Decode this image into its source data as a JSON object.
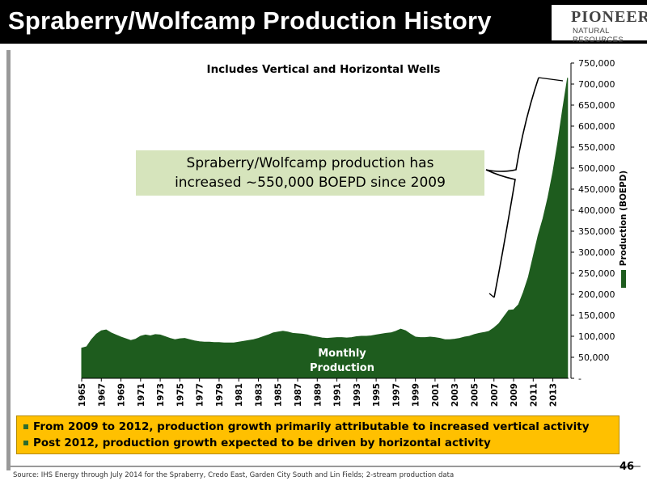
{
  "header": {
    "title": "Spraberry/Wolfcamp Production History"
  },
  "logo": {
    "name": "PIONEER",
    "sub": "NATURAL RESOURCES"
  },
  "subtitle": "Includes Vertical and Horizontal Wells",
  "callout": {
    "line1": "Spraberry/Wolfcamp production has",
    "line2": "increased ~550,000 BOEPD since 2009"
  },
  "bullets": [
    "From 2009 to 2012, production growth primarily attributable to increased vertical activity",
    "Post 2012, production growth expected to be driven by horizontal activity"
  ],
  "source": "Source: IHS Energy through July 2014 for the Spraberry, Credo East, Garden City South and Lin Fields; 2-stream production data",
  "page_number": "46",
  "colors": {
    "series": "#1e5c1e",
    "callout_bg": "#d6e4bc",
    "bullet_bg": "#ffc000"
  },
  "chart_data": {
    "type": "area",
    "title": "Includes Vertical and Horizontal Wells",
    "ylabel": "Production (BOEPD)",
    "ylim": [
      0,
      750000
    ],
    "yticks": [
      0,
      50000,
      100000,
      150000,
      200000,
      250000,
      300000,
      350000,
      400000,
      450000,
      500000,
      550000,
      600000,
      650000,
      700000,
      750000
    ],
    "ytick_labels": [
      "-",
      "50,000",
      "100,000",
      "150,000",
      "200,000",
      "250,000",
      "300,000",
      "350,000",
      "400,000",
      "450,000",
      "500,000",
      "550,000",
      "600,000",
      "650,000",
      "700,000",
      "750,000"
    ],
    "xlim": [
      1965,
      2014.6
    ],
    "xtick_labels": [
      "1965",
      "1967",
      "1969",
      "1971",
      "1973",
      "1975",
      "1977",
      "1979",
      "1981",
      "1983",
      "1985",
      "1987",
      "1989",
      "1991",
      "1993",
      "1995",
      "1997",
      "1999",
      "2001",
      "2003",
      "2005",
      "2007",
      "2009",
      "2011",
      "2013"
    ],
    "series": [
      {
        "name": "Monthly Production",
        "x": [
          1965,
          1965.5,
          1966,
          1966.5,
          1967,
          1967.5,
          1968,
          1968.5,
          1969,
          1969.5,
          1970,
          1970.5,
          1971,
          1971.5,
          1972,
          1972.5,
          1973,
          1973.5,
          1974,
          1974.5,
          1975,
          1975.5,
          1976,
          1976.5,
          1977,
          1977.5,
          1978,
          1978.5,
          1979,
          1979.5,
          1980,
          1980.5,
          1981,
          1981.5,
          1982,
          1982.5,
          1983,
          1983.5,
          1984,
          1984.5,
          1985,
          1985.5,
          1986,
          1986.5,
          1987,
          1987.5,
          1988,
          1988.5,
          1989,
          1989.5,
          1990,
          1990.5,
          1991,
          1991.5,
          1992,
          1992.5,
          1993,
          1993.5,
          1994,
          1994.5,
          1995,
          1995.5,
          1996,
          1996.5,
          1997,
          1997.5,
          1998,
          1998.5,
          1999,
          1999.5,
          2000,
          2000.5,
          2001,
          2001.5,
          2002,
          2002.5,
          2003,
          2003.5,
          2004,
          2004.5,
          2005,
          2005.5,
          2006,
          2006.5,
          2007,
          2007.5,
          2008,
          2008.5,
          2009,
          2009.5,
          2010,
          2010.5,
          2011,
          2011.5,
          2012,
          2012.5,
          2013,
          2013.5,
          2014,
          2014.5
        ],
        "values": [
          72000,
          75000,
          92000,
          105000,
          113000,
          115000,
          108000,
          103000,
          98000,
          94000,
          90000,
          93000,
          100000,
          103000,
          101000,
          104000,
          103000,
          99000,
          95000,
          92000,
          94000,
          95000,
          92000,
          89000,
          87000,
          86000,
          86000,
          85000,
          85000,
          84000,
          84000,
          84000,
          86000,
          88000,
          90000,
          92000,
          95000,
          99000,
          103000,
          108000,
          110000,
          112000,
          110000,
          107000,
          106000,
          105000,
          103000,
          100000,
          98000,
          96000,
          95000,
          96000,
          97000,
          97000,
          96000,
          97000,
          99000,
          100000,
          100000,
          101000,
          103000,
          105000,
          107000,
          108000,
          112000,
          117000,
          113000,
          105000,
          98000,
          97000,
          97000,
          98000,
          97000,
          95000,
          92000,
          92000,
          93000,
          95000,
          98000,
          100000,
          104000,
          107000,
          109000,
          112000,
          120000,
          130000,
          146000,
          162000,
          163000,
          175000,
          205000,
          240000,
          290000,
          340000,
          380000,
          430000,
          490000,
          560000,
          640000,
          715000
        ]
      }
    ],
    "annotations": [
      "Monthly Production"
    ],
    "annotation_lines": [
      "Monthly",
      "Production"
    ]
  }
}
